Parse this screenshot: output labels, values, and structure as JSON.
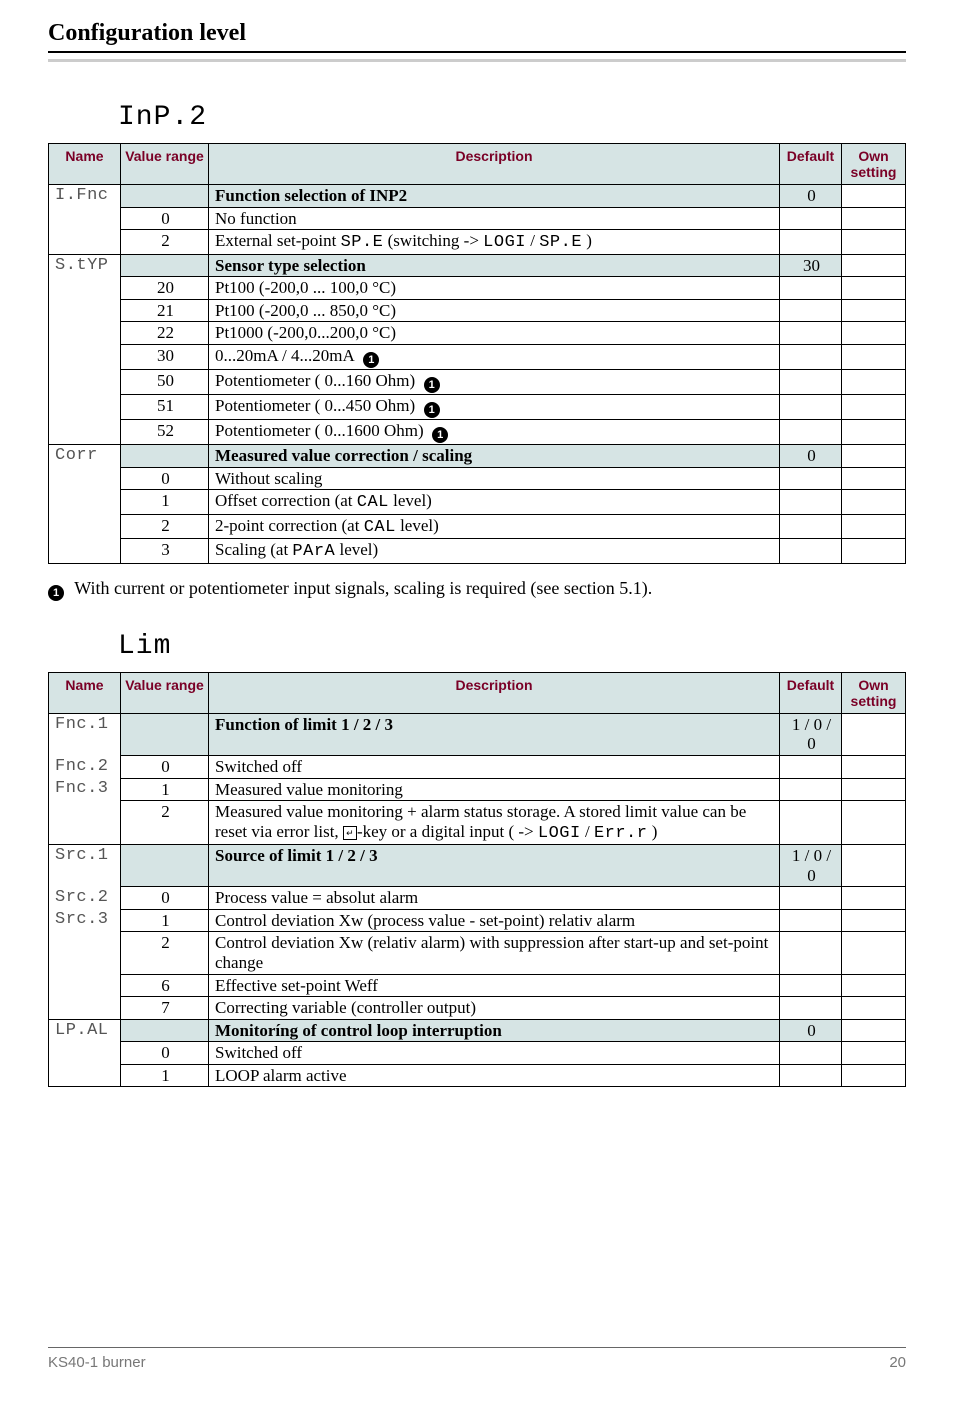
{
  "page": {
    "title": "Configuration level",
    "footer_left": "KS40-1 burner",
    "footer_page": "20"
  },
  "circle_glyph": "1",
  "headers": {
    "name": "Name",
    "range": "Value range",
    "desc": "Description",
    "default": "Default",
    "own": "Own setting"
  },
  "table1": {
    "heading": "InP.2",
    "rows": [
      {
        "name": "I.Fnc",
        "range": "",
        "desc_html": "<span class='bold'>Function selection of INP2</span>",
        "default": "0",
        "shaded": true,
        "name_start": true
      },
      {
        "name": "",
        "range": "0",
        "desc_html": "No function",
        "default": ""
      },
      {
        "name": "",
        "range": "2",
        "desc_html": "External set-point <span class='seg'>SP.E</span> (switching -> <span class='seg'>LOGI</span> / <span class='seg'>SP.E</span> )",
        "default": "",
        "name_end": true
      },
      {
        "name": "S.tYP",
        "range": "",
        "desc_html": "<span class='bold'>Sensor type selection</span>",
        "default": "30",
        "shaded": true,
        "name_start": true
      },
      {
        "name": "",
        "range": "20",
        "desc_html": "Pt100 (-200,0 ... 100,0 °C)",
        "default": ""
      },
      {
        "name": "",
        "range": "21",
        "desc_html": "Pt100 (-200,0 ... 850,0 °C)",
        "default": ""
      },
      {
        "name": "",
        "range": "22",
        "desc_html": "Pt1000 (-200,0...200,0 °C)",
        "default": ""
      },
      {
        "name": "",
        "range": "30",
        "desc_html": "0...20mA / 4...20mA&nbsp;&nbsp;<span class='circ'>1</span>",
        "default": ""
      },
      {
        "name": "",
        "range": "50",
        "desc_html": "Potentiometer ( 0...160 Ohm)&nbsp;&nbsp;<span class='circ'>1</span>",
        "default": ""
      },
      {
        "name": "",
        "range": "51",
        "desc_html": "Potentiometer ( 0...450 Ohm)&nbsp;&nbsp;<span class='circ'>1</span>",
        "default": ""
      },
      {
        "name": "",
        "range": "52",
        "desc_html": "Potentiometer ( 0...1600 Ohm)&nbsp;&nbsp;<span class='circ'>1</span>",
        "default": "",
        "name_end": true
      },
      {
        "name": "Corr",
        "range": "",
        "desc_html": "<span class='bold'>Measured value correction / scaling</span>",
        "default": "0",
        "shaded": true,
        "name_start": true
      },
      {
        "name": "",
        "range": "0",
        "desc_html": "Without scaling",
        "default": ""
      },
      {
        "name": "",
        "range": "1",
        "desc_html": "Offset correction (at <span class='seg'>CAL</span> level)",
        "default": ""
      },
      {
        "name": "",
        "range": "2",
        "desc_html": "2-point correction (at <span class='seg'>CAL</span> level)",
        "default": ""
      },
      {
        "name": "",
        "range": "3",
        "desc_html": "Scaling (at <span class='seg'>PArA</span> level)",
        "default": "",
        "name_end": true
      }
    ]
  },
  "footnote1": "With current or potentiometer input signals, scaling is required  (see section 5.1).",
  "table2": {
    "heading": "Lim",
    "rows": [
      {
        "name": "Fnc.1",
        "range": "",
        "desc_html": "<span class='bold'>Function of limit 1 / 2 / 3</span>",
        "default": "1 / 0 / 0",
        "shaded": true,
        "name_start": true
      },
      {
        "name": "Fnc.2",
        "range": "0",
        "desc_html": "Switched off",
        "default": ""
      },
      {
        "name": "Fnc.3",
        "range": "1",
        "desc_html": "Measured value monitoring",
        "default": ""
      },
      {
        "name": "",
        "range": "2",
        "desc_html": "Measured value monitoring + alarm status storage. A stored limit value can be reset via error list, <span class='keyicon'>&#8629;</span>-key or a digital input ( -> <span class='seg'>LOGI</span> / <span class='seg'>Err.r</span> )",
        "default": "",
        "name_end": true
      },
      {
        "name": "Src.1",
        "range": "",
        "desc_html": "<span class='bold'>Source of limit 1 / 2 / 3</span>",
        "default": "1 / 0 / 0",
        "shaded": true,
        "name_start": true
      },
      {
        "name": "Src.2",
        "range": "0",
        "desc_html": "Process value = absolut alarm",
        "default": ""
      },
      {
        "name": "Src.3",
        "range": "1",
        "desc_html": "Control deviation Xw (process value - set-point) relativ alarm",
        "default": ""
      },
      {
        "name": "",
        "range": "2",
        "desc_html": "Control deviation Xw (relativ alarm) with suppression after start-up and set-point change",
        "default": ""
      },
      {
        "name": "",
        "range": "6",
        "desc_html": "Effective set-point Weff",
        "default": ""
      },
      {
        "name": "",
        "range": "7",
        "desc_html": "Correcting variable (controller output)",
        "default": "",
        "name_end": true
      },
      {
        "name": "LP.AL",
        "range": "",
        "desc_html": "<span class='bold'>Monitoríng of control loop interruption</span>",
        "default": "0",
        "shaded": true,
        "name_start": true
      },
      {
        "name": "",
        "range": "0",
        "desc_html": "Switched off",
        "default": ""
      },
      {
        "name": "",
        "range": "1",
        "desc_html": "LOOP alarm active",
        "default": "",
        "name_end": true
      }
    ]
  }
}
